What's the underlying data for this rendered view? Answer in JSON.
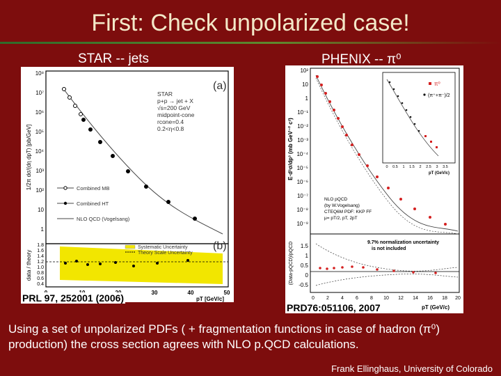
{
  "slide": {
    "title": "First: Check unpolarized case!",
    "left_label": "STAR -- jets",
    "right_label": "PHENIX -- π⁰",
    "star_ref": "PRL 97, 252001 (2006)",
    "phenix_ref": "PRD76:051106, 2007",
    "body": "Using a set of unpolarized PDFs ( + fragmentation functions in case of hadron (π⁰) production) the cross section agrees with NLO p.QCD calculations.",
    "footer": "Frank Ellinghaus, University of Colorado"
  },
  "star_plot": {
    "panel_a": "(a)",
    "panel_b": "(b)",
    "ylabel": "1/2π dσ/(dη dpT) [pb/GeV]",
    "ratio_ylabel": "data / theory",
    "xlabel": "pT [GeV/c]",
    "info": [
      "STAR",
      "p+p → jet + X",
      "√s=200 GeV",
      "midpoint-cone",
      "rcone=0.4",
      "0.2<η<0.8"
    ],
    "legend": [
      "Combined MB",
      "Combined HT",
      "NLO QCD (Vogelsang)"
    ],
    "ratio_legend": [
      "Systematic Uncertainty",
      "Theory Scale Uncertainty"
    ],
    "y_ticks": [
      "10⁸",
      "10⁷",
      "10⁶",
      "10⁵",
      "10⁴",
      "10³",
      "10²",
      "10",
      "1"
    ],
    "ratio_ticks": [
      "1.8",
      "1.6",
      "1.4",
      "1.2",
      "1.0",
      "0.8",
      "0.6",
      "0.4"
    ],
    "x_ticks": [
      "0",
      "10",
      "20",
      "30",
      "40",
      "50"
    ]
  },
  "phenix_plot": {
    "ylabel": "E·d³σ/dp³ (mb GeV⁻² c³)",
    "ratio_ylabel": "(Data-pQCD)/pQCD",
    "xlabel": "pT (GeV/c)",
    "y_ticks": [
      "10²",
      "10",
      "1",
      "10⁻¹",
      "10⁻²",
      "10⁻³",
      "10⁻⁴",
      "10⁻⁵",
      "10⁻⁶",
      "10⁻⁷",
      "10⁻⁸",
      "10⁻⁹"
    ],
    "ratio_ticks": [
      "1.5",
      "1",
      "0.5",
      "0",
      "-0.5"
    ],
    "x_ticks": [
      "0",
      "2",
      "4",
      "6",
      "8",
      "10",
      "12",
      "14",
      "16",
      "18",
      "20"
    ],
    "inset_legend": [
      "π⁰",
      "(π⁺+π⁻)/2"
    ],
    "inset_xlabel": "pT (GeV/c)",
    "inset_x_ticks": [
      "0",
      "0.5",
      "1",
      "1.5",
      "2",
      "2.5",
      "3",
      "3.5"
    ],
    "nlo_text": [
      "NLO pQCD",
      "(by W.Vogelsang)",
      "CTEQ6M PDF: KKP FF",
      "μ= pT/2, pT, 2pT"
    ],
    "norm_text": [
      "9.7% normalization uncertainty",
      "is not included"
    ]
  },
  "colors": {
    "background": "#7d0d0d",
    "title": "#f3e8c8",
    "phenix_points": "#d42020",
    "star_band": "#f2e600"
  }
}
